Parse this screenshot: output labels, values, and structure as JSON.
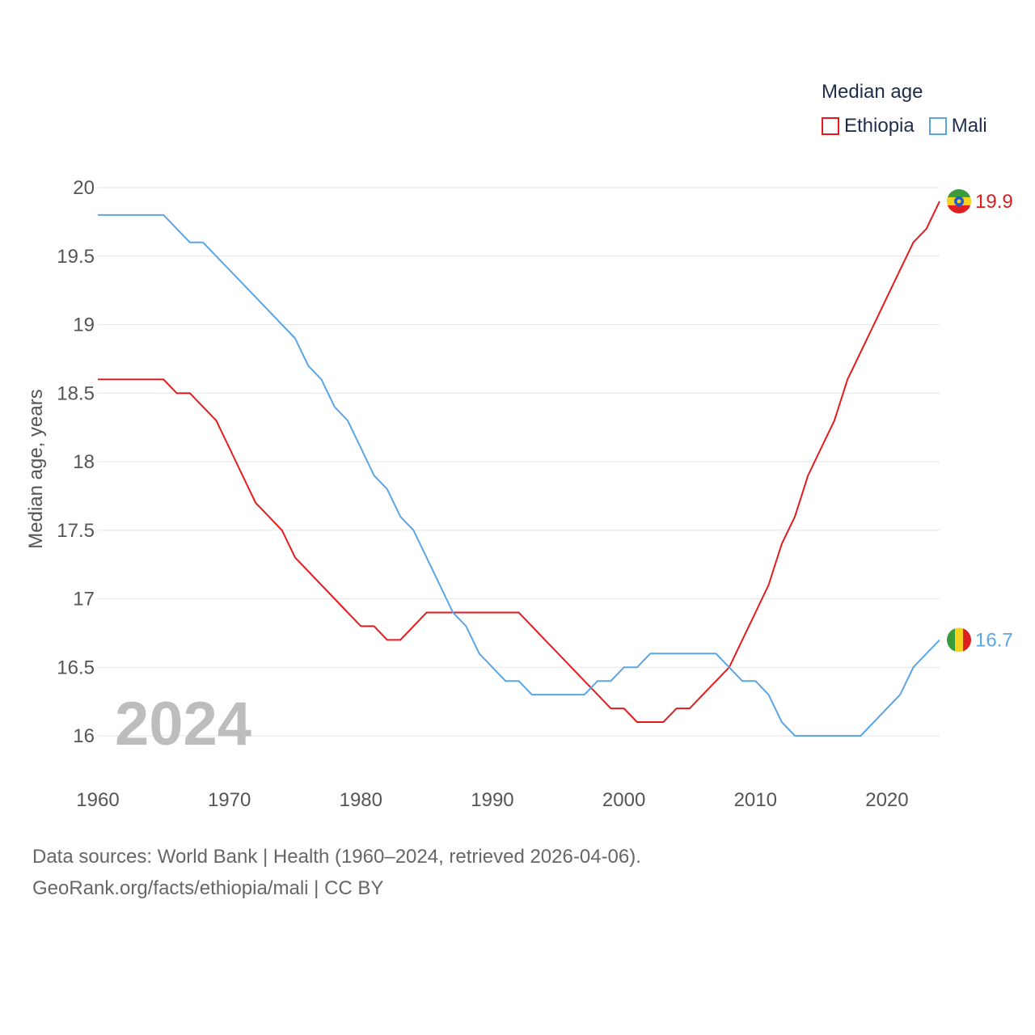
{
  "chart_data": {
    "type": "line",
    "title": "Median age",
    "ylabel": "Median age, years",
    "xlabel": "",
    "xlim": [
      1960,
      2024
    ],
    "ylim": [
      16,
      20
    ],
    "y_ticks": [
      "16",
      "16.5",
      "17",
      "17.5",
      "18",
      "18.5",
      "19",
      "19.5",
      "20"
    ],
    "x_ticks": [
      "1960",
      "1970",
      "1980",
      "1990",
      "2000",
      "2010",
      "2020"
    ],
    "year_label": "2024",
    "grid": true,
    "legend_position": "top-right",
    "series": [
      {
        "name": "Ethiopia",
        "color": "#e41a1c",
        "end_label": "19.9",
        "flag_icon": "ethiopia-flag-icon",
        "x": [
          1960,
          1961,
          1962,
          1963,
          1964,
          1965,
          1966,
          1967,
          1968,
          1969,
          1970,
          1971,
          1972,
          1973,
          1974,
          1975,
          1976,
          1977,
          1978,
          1979,
          1980,
          1981,
          1982,
          1983,
          1984,
          1985,
          1986,
          1987,
          1988,
          1989,
          1990,
          1991,
          1992,
          1993,
          1994,
          1995,
          1996,
          1997,
          1998,
          1999,
          2000,
          2001,
          2002,
          2003,
          2004,
          2005,
          2006,
          2007,
          2008,
          2009,
          2010,
          2011,
          2012,
          2013,
          2014,
          2015,
          2016,
          2017,
          2018,
          2019,
          2020,
          2021,
          2022,
          2023,
          2024
        ],
        "values": [
          18.6,
          18.6,
          18.6,
          18.6,
          18.6,
          18.6,
          18.5,
          18.5,
          18.4,
          18.3,
          18.1,
          17.9,
          17.7,
          17.6,
          17.5,
          17.3,
          17.2,
          17.1,
          17.0,
          16.9,
          16.8,
          16.8,
          16.7,
          16.7,
          16.8,
          16.9,
          16.9,
          16.9,
          16.9,
          16.9,
          16.9,
          16.9,
          16.9,
          16.8,
          16.7,
          16.6,
          16.5,
          16.4,
          16.3,
          16.2,
          16.2,
          16.1,
          16.1,
          16.1,
          16.2,
          16.2,
          16.3,
          16.4,
          16.5,
          16.7,
          16.9,
          17.1,
          17.4,
          17.6,
          17.9,
          18.1,
          18.3,
          18.6,
          18.8,
          19.0,
          19.2,
          19.4,
          19.6,
          19.7,
          19.9
        ]
      },
      {
        "name": "Mali",
        "color": "#5aa5e6",
        "end_label": "16.7",
        "flag_icon": "mali-flag-icon",
        "x": [
          1960,
          1961,
          1962,
          1963,
          1964,
          1965,
          1966,
          1967,
          1968,
          1969,
          1970,
          1971,
          1972,
          1973,
          1974,
          1975,
          1976,
          1977,
          1978,
          1979,
          1980,
          1981,
          1982,
          1983,
          1984,
          1985,
          1986,
          1987,
          1988,
          1989,
          1990,
          1991,
          1992,
          1993,
          1994,
          1995,
          1996,
          1997,
          1998,
          1999,
          2000,
          2001,
          2002,
          2003,
          2004,
          2005,
          2006,
          2007,
          2008,
          2009,
          2010,
          2011,
          2012,
          2013,
          2014,
          2015,
          2016,
          2017,
          2018,
          2019,
          2020,
          2021,
          2022,
          2023,
          2024
        ],
        "values": [
          19.8,
          19.8,
          19.8,
          19.8,
          19.8,
          19.8,
          19.7,
          19.6,
          19.6,
          19.5,
          19.4,
          19.3,
          19.2,
          19.1,
          19.0,
          18.9,
          18.7,
          18.6,
          18.4,
          18.3,
          18.1,
          17.9,
          17.8,
          17.6,
          17.5,
          17.3,
          17.1,
          16.9,
          16.8,
          16.6,
          16.5,
          16.4,
          16.4,
          16.3,
          16.3,
          16.3,
          16.3,
          16.3,
          16.4,
          16.4,
          16.5,
          16.5,
          16.6,
          16.6,
          16.6,
          16.6,
          16.6,
          16.6,
          16.5,
          16.4,
          16.4,
          16.3,
          16.1,
          16.0,
          16.0,
          16.0,
          16.0,
          16.0,
          16.0,
          16.1,
          16.2,
          16.3,
          16.5,
          16.6,
          16.7
        ]
      }
    ]
  },
  "source": {
    "line1": "Data sources: World Bank | Health (1960–2024, retrieved 2026-04-06).",
    "line2": "GeoRank.org/facts/ethiopia/mali | CC BY"
  }
}
